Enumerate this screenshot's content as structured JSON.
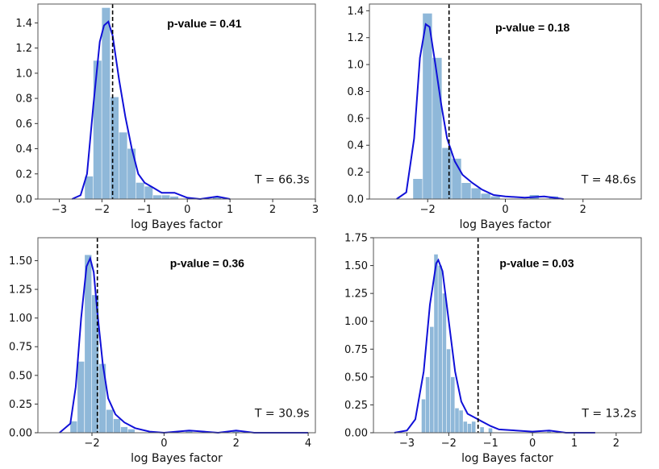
{
  "chart_data": [
    {
      "type": "bar",
      "subtype": "histogram-with-kde",
      "xlabel": "log Bayes factor",
      "xlim": [
        -3.5,
        3.0
      ],
      "xticks": [
        -3,
        -2,
        -1,
        0,
        1,
        2,
        3
      ],
      "ylim": [
        0,
        1.55
      ],
      "yticks": [
        0.0,
        0.2,
        0.4,
        0.6,
        0.8,
        1.0,
        1.2,
        1.4
      ],
      "ytick_decimals": 1,
      "annotation": "p-value = 0.41",
      "time_label": "T = 66.3s",
      "observed": -1.75,
      "bin_width": 0.2,
      "bins": [
        {
          "x": -2.3,
          "h": 0.18
        },
        {
          "x": -2.1,
          "h": 1.1
        },
        {
          "x": -1.9,
          "h": 1.52
        },
        {
          "x": -1.7,
          "h": 0.81
        },
        {
          "x": -1.5,
          "h": 0.53
        },
        {
          "x": -1.3,
          "h": 0.4
        },
        {
          "x": -1.1,
          "h": 0.13
        },
        {
          "x": -0.9,
          "h": 0.1
        },
        {
          "x": -0.7,
          "h": 0.03
        },
        {
          "x": -0.5,
          "h": 0.03
        },
        {
          "x": -0.3,
          "h": 0.02
        },
        {
          "x": 0.7,
          "h": 0.02
        }
      ],
      "kde": [
        [
          -2.7,
          0
        ],
        [
          -2.5,
          0.03
        ],
        [
          -2.35,
          0.2
        ],
        [
          -2.2,
          0.75
        ],
        [
          -2.05,
          1.25
        ],
        [
          -1.95,
          1.38
        ],
        [
          -1.85,
          1.41
        ],
        [
          -1.75,
          1.3
        ],
        [
          -1.6,
          0.95
        ],
        [
          -1.45,
          0.65
        ],
        [
          -1.3,
          0.4
        ],
        [
          -1.15,
          0.2
        ],
        [
          -1.0,
          0.13
        ],
        [
          -0.8,
          0.09
        ],
        [
          -0.6,
          0.05
        ],
        [
          -0.3,
          0.05
        ],
        [
          0.0,
          0.01
        ],
        [
          0.3,
          0.0
        ],
        [
          0.7,
          0.02
        ],
        [
          1.0,
          0.0
        ]
      ]
    },
    {
      "type": "bar",
      "subtype": "histogram-with-kde",
      "xlabel": "log Bayes factor",
      "xlim": [
        -3.5,
        3.5
      ],
      "xticks": [
        -2,
        0,
        2
      ],
      "ylim": [
        0,
        1.45
      ],
      "yticks": [
        0.0,
        0.2,
        0.4,
        0.6,
        0.8,
        1.0,
        1.2,
        1.4
      ],
      "ytick_decimals": 1,
      "annotation": "p-value = 0.18",
      "time_label": "T = 48.6s",
      "observed": -1.45,
      "bin_width": 0.25,
      "bins": [
        {
          "x": -2.25,
          "h": 0.15
        },
        {
          "x": -2.0,
          "h": 1.38
        },
        {
          "x": -1.75,
          "h": 1.05
        },
        {
          "x": -1.5,
          "h": 0.38
        },
        {
          "x": -1.25,
          "h": 0.3
        },
        {
          "x": -1.0,
          "h": 0.12
        },
        {
          "x": -0.75,
          "h": 0.08
        },
        {
          "x": -0.5,
          "h": 0.04
        },
        {
          "x": -0.25,
          "h": 0.02
        },
        {
          "x": 0.75,
          "h": 0.03
        },
        {
          "x": 1.25,
          "h": 0.02
        }
      ],
      "kde": [
        [
          -2.8,
          0
        ],
        [
          -2.55,
          0.05
        ],
        [
          -2.35,
          0.45
        ],
        [
          -2.2,
          1.05
        ],
        [
          -2.05,
          1.3
        ],
        [
          -1.95,
          1.28
        ],
        [
          -1.8,
          1.0
        ],
        [
          -1.65,
          0.7
        ],
        [
          -1.5,
          0.45
        ],
        [
          -1.3,
          0.28
        ],
        [
          -1.1,
          0.18
        ],
        [
          -0.85,
          0.12
        ],
        [
          -0.6,
          0.07
        ],
        [
          -0.3,
          0.03
        ],
        [
          0.0,
          0.02
        ],
        [
          0.5,
          0.01
        ],
        [
          1.0,
          0.02
        ],
        [
          1.5,
          0.0
        ]
      ]
    },
    {
      "type": "bar",
      "subtype": "histogram-with-kde",
      "xlabel": "log Bayes factor",
      "xlim": [
        -3.5,
        4.2
      ],
      "xticks": [
        -2,
        0,
        2,
        4
      ],
      "ylim": [
        0,
        1.7
      ],
      "yticks": [
        0.0,
        0.25,
        0.5,
        0.75,
        1.0,
        1.25,
        1.5
      ],
      "ytick_decimals": 2,
      "annotation": "p-value = 0.36",
      "time_label": "T = 30.9s",
      "observed": -1.85,
      "bin_width": 0.2,
      "bins": [
        {
          "x": -2.5,
          "h": 0.1
        },
        {
          "x": -2.3,
          "h": 0.62
        },
        {
          "x": -2.1,
          "h": 1.55
        },
        {
          "x": -1.9,
          "h": 1.2
        },
        {
          "x": -1.7,
          "h": 0.6
        },
        {
          "x": -1.5,
          "h": 0.2
        },
        {
          "x": -1.3,
          "h": 0.12
        },
        {
          "x": -1.1,
          "h": 0.05
        },
        {
          "x": -0.9,
          "h": 0.03
        },
        {
          "x": 0.7,
          "h": 0.02
        },
        {
          "x": 2.0,
          "h": 0.02
        }
      ],
      "kde": [
        [
          -2.9,
          0
        ],
        [
          -2.6,
          0.08
        ],
        [
          -2.45,
          0.4
        ],
        [
          -2.3,
          1.0
        ],
        [
          -2.15,
          1.45
        ],
        [
          -2.05,
          1.52
        ],
        [
          -1.95,
          1.4
        ],
        [
          -1.85,
          1.05
        ],
        [
          -1.7,
          0.6
        ],
        [
          -1.55,
          0.3
        ],
        [
          -1.35,
          0.16
        ],
        [
          -1.1,
          0.09
        ],
        [
          -0.8,
          0.04
        ],
        [
          -0.4,
          0.01
        ],
        [
          0.0,
          0.0
        ],
        [
          0.7,
          0.02
        ],
        [
          1.5,
          0.0
        ],
        [
          2.0,
          0.02
        ],
        [
          2.5,
          0.0
        ],
        [
          4.0,
          0.0
        ]
      ]
    },
    {
      "type": "bar",
      "subtype": "histogram-with-kde",
      "xlabel": "log Bayes factor",
      "xlim": [
        -3.8,
        2.6
      ],
      "xticks": [
        -3,
        -2,
        -1,
        0,
        1,
        2
      ],
      "ylim": [
        0,
        1.75
      ],
      "yticks": [
        0.0,
        0.25,
        0.5,
        0.75,
        1.0,
        1.25,
        1.5,
        1.75
      ],
      "ytick_decimals": 2,
      "annotation": "p-value = 0.03",
      "time_label": "T = 13.2s",
      "observed": -1.3,
      "bin_width": 0.1,
      "bins": [
        {
          "x": -2.6,
          "h": 0.3
        },
        {
          "x": -2.5,
          "h": 0.5
        },
        {
          "x": -2.4,
          "h": 0.95
        },
        {
          "x": -2.3,
          "h": 1.6
        },
        {
          "x": -2.2,
          "h": 1.5
        },
        {
          "x": -2.1,
          "h": 1.25
        },
        {
          "x": -2.0,
          "h": 0.75
        },
        {
          "x": -1.9,
          "h": 0.5
        },
        {
          "x": -1.8,
          "h": 0.22
        },
        {
          "x": -1.7,
          "h": 0.2
        },
        {
          "x": -1.6,
          "h": 0.1
        },
        {
          "x": -1.5,
          "h": 0.08
        },
        {
          "x": -1.4,
          "h": 0.1
        },
        {
          "x": -1.2,
          "h": 0.05
        },
        {
          "x": -1.0,
          "h": 0.04
        },
        {
          "x": 0.4,
          "h": 0.02
        }
      ],
      "kde": [
        [
          -3.3,
          0
        ],
        [
          -3.0,
          0.02
        ],
        [
          -2.8,
          0.12
        ],
        [
          -2.6,
          0.55
        ],
        [
          -2.45,
          1.15
        ],
        [
          -2.3,
          1.52
        ],
        [
          -2.25,
          1.55
        ],
        [
          -2.15,
          1.45
        ],
        [
          -2.0,
          1.0
        ],
        [
          -1.85,
          0.55
        ],
        [
          -1.7,
          0.28
        ],
        [
          -1.55,
          0.17
        ],
        [
          -1.4,
          0.14
        ],
        [
          -1.2,
          0.1
        ],
        [
          -1.0,
          0.06
        ],
        [
          -0.8,
          0.03
        ],
        [
          -0.4,
          0.02
        ],
        [
          0.0,
          0.01
        ],
        [
          0.4,
          0.02
        ],
        [
          0.8,
          0.0
        ],
        [
          1.5,
          0.0
        ]
      ]
    }
  ]
}
